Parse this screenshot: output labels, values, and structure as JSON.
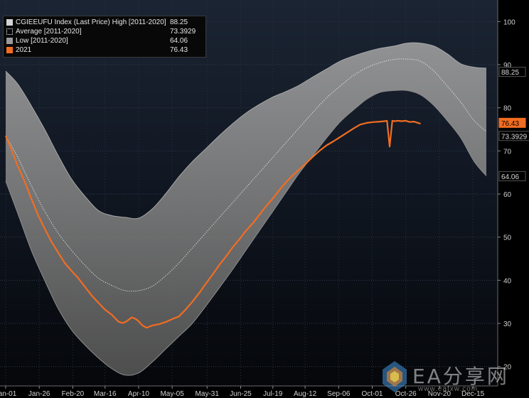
{
  "chart_data": {
    "type": "area",
    "legend": {
      "placement": "top-left",
      "entries": [
        {
          "label": "CGIEEUFU Index (Last Price) High [2011-2020]",
          "value": "88.25",
          "style": "band"
        },
        {
          "label": "Average  [2011-2020]",
          "value": "73.3929",
          "style": "avg"
        },
        {
          "label": "Low  [2011-2020]",
          "value": "64.06",
          "style": "low"
        },
        {
          "label": "2021",
          "value": "76.43",
          "style": "2021"
        }
      ]
    },
    "x_axis": {
      "ticks": [
        "Jan-01",
        "Jan-26",
        "Feb-20",
        "Mar-16",
        "Apr-10",
        "May-05",
        "May-31",
        "Jun-25",
        "Jul-19",
        "Aug-12",
        "Sep-06",
        "Oct-01",
        "Oct-26",
        "Nov-20",
        "Dec-15"
      ],
      "tick_day_of_year": [
        1,
        26,
        51,
        75,
        100,
        125,
        151,
        176,
        200,
        224,
        249,
        274,
        299,
        324,
        349
      ],
      "range_days": [
        1,
        366
      ]
    },
    "y_axis": {
      "ticks": [
        20,
        30,
        40,
        50,
        60,
        70,
        80,
        90,
        100
      ],
      "ylim": [
        15.5,
        105
      ],
      "side": "right",
      "grid": true
    },
    "x_unit": "day of year",
    "series": [
      {
        "name": "High [2011-2020]",
        "color": "#9a9a9a",
        "x": [
          1,
          10,
          20,
          30,
          40,
          50,
          60,
          70,
          80,
          90,
          100,
          110,
          120,
          130,
          140,
          150,
          160,
          170,
          180,
          190,
          200,
          210,
          220,
          230,
          240,
          250,
          260,
          270,
          280,
          290,
          300,
          310,
          320,
          330,
          340,
          350,
          359
        ],
        "values": [
          88.5,
          85.5,
          80.5,
          75,
          69,
          63.5,
          59.5,
          56.2,
          55,
          54.6,
          54.4,
          56.5,
          60,
          64,
          67.5,
          70.5,
          73.5,
          76.3,
          78.8,
          80.8,
          82.5,
          83.8,
          85.3,
          87.2,
          89,
          90.8,
          92,
          93,
          93.8,
          94.3,
          95,
          95,
          94.3,
          92.5,
          90.2,
          89.4,
          89.2
        ]
      },
      {
        "name": "Average [2011-2020]",
        "color": "#ffffff",
        "x": [
          1,
          10,
          20,
          30,
          40,
          50,
          60,
          70,
          80,
          90,
          100,
          110,
          120,
          130,
          140,
          150,
          160,
          170,
          180,
          190,
          200,
          210,
          220,
          230,
          240,
          250,
          260,
          270,
          280,
          290,
          300,
          310,
          320,
          330,
          340,
          350,
          359
        ],
        "values": [
          73.5,
          68.5,
          62,
          56,
          51,
          47,
          43.5,
          40.5,
          38.8,
          37.6,
          37.6,
          38.6,
          41,
          44,
          47.5,
          51,
          54.5,
          58,
          61.5,
          65,
          68.5,
          72,
          75.5,
          79,
          82.3,
          85,
          87.5,
          89.3,
          90.5,
          91.2,
          91.3,
          90.8,
          88.5,
          85,
          81.3,
          77,
          74.5
        ]
      },
      {
        "name": "Low [2011-2020]",
        "color": "#9a9a9a",
        "x": [
          1,
          10,
          20,
          30,
          40,
          50,
          60,
          70,
          80,
          90,
          100,
          110,
          120,
          130,
          140,
          150,
          160,
          170,
          180,
          190,
          200,
          210,
          220,
          230,
          240,
          250,
          260,
          270,
          280,
          290,
          300,
          310,
          320,
          330,
          340,
          350,
          359
        ],
        "values": [
          63,
          55.5,
          47,
          40,
          33.5,
          28.5,
          25,
          22,
          19.5,
          18,
          18.5,
          21,
          24,
          27,
          30,
          34,
          38.2,
          42.5,
          47,
          51.5,
          56,
          60.5,
          65,
          69,
          73,
          76.7,
          79.5,
          82,
          83.6,
          84,
          84,
          83,
          80.5,
          77,
          73,
          67.5,
          64.2
        ]
      },
      {
        "name": "2021",
        "color": "#f26d21",
        "x": [
          1,
          5,
          10,
          15,
          20,
          25,
          30,
          35,
          40,
          45,
          50,
          55,
          60,
          65,
          70,
          75,
          80,
          85,
          88,
          90,
          92,
          95,
          98,
          100,
          103,
          106,
          110,
          115,
          120,
          125,
          130,
          135,
          140,
          145,
          150,
          155,
          160,
          165,
          170,
          175,
          180,
          185,
          190,
          195,
          200,
          205,
          210,
          215,
          220,
          225,
          230,
          235,
          240,
          245,
          250,
          255,
          260,
          265,
          270,
          275,
          280,
          283,
          285,
          287,
          289,
          291,
          293,
          296,
          299,
          302,
          305,
          310
        ],
        "values": [
          73.5,
          70.5,
          66.5,
          63,
          59,
          55.2,
          52,
          49,
          46.5,
          44,
          42.2,
          40.5,
          38.5,
          36.5,
          34.8,
          33.2,
          32,
          30.4,
          30.1,
          30.3,
          30.7,
          31.4,
          31,
          30.5,
          29.5,
          29,
          29.5,
          29.8,
          30.3,
          31,
          31.6,
          33.2,
          35,
          37,
          39.2,
          41.3,
          43.5,
          45.5,
          47.6,
          49.5,
          51.5,
          53.2,
          55.2,
          57.2,
          59,
          61,
          62.8,
          64.4,
          65.8,
          67.2,
          68.7,
          70.1,
          71.3,
          72.2,
          73.2,
          74.2,
          75.2,
          76.1,
          76.5,
          76.7,
          76.8,
          76.9,
          77,
          71,
          77,
          76.9,
          77,
          76.9,
          77,
          76.7,
          76.8,
          76.3
        ]
      }
    ],
    "right_labels": [
      {
        "text": "88.25",
        "value": 88.25,
        "bg": "#000000",
        "fg": "#d8d8d8",
        "border": "#555555"
      },
      {
        "text": "76.43",
        "value": 76.43,
        "bg": "#f26d21",
        "fg": "#000000",
        "border": "#f26d21"
      },
      {
        "text": "73.3929",
        "value": 73.3929,
        "bg": "#000000",
        "fg": "#d8d8d8",
        "border": "#555555"
      },
      {
        "text": "64.06",
        "value": 64.06,
        "bg": "#000000",
        "fg": "#d8d8d8",
        "border": "#555555"
      }
    ],
    "band_color": "#8a8a8a",
    "avg_color": "#ffffff",
    "series_2021_color": "#f26d21"
  },
  "watermark": {
    "text": "EA分享网",
    "url": "www.eafxw.com"
  }
}
